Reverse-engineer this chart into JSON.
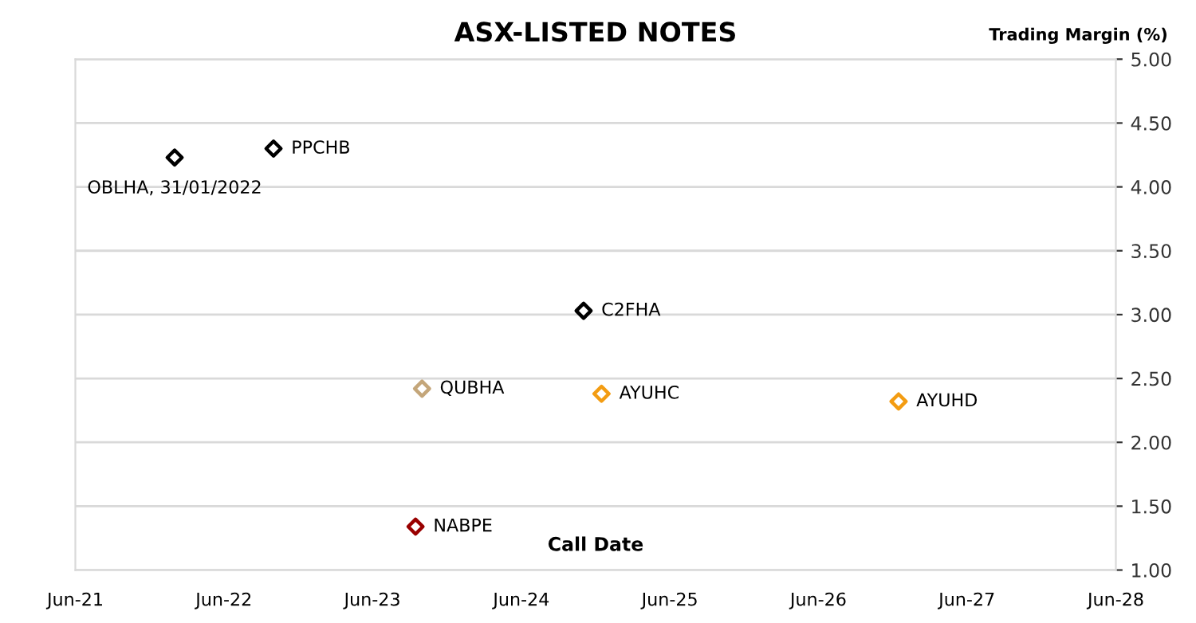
{
  "chart_data": {
    "type": "scatter",
    "title": "ASX-LISTED NOTES",
    "xlabel": "Call Date",
    "ylabel": "Trading Margin (%)",
    "x": [
      "2022-01-31",
      "2022-10-01",
      "2024-11-01",
      "2023-10-01",
      "2024-12-15",
      "2026-12-15",
      "2023-09-15"
    ],
    "values": [
      4.23,
      4.3,
      3.03,
      2.42,
      2.38,
      2.32,
      1.34
    ],
    "colors": [
      "#000000",
      "#000000",
      "#000000",
      "#c4a67a",
      "#f39c12",
      "#f39c12",
      "#990000"
    ],
    "marker": "diamond",
    "annotations": [
      {
        "text": "OBLHA, 31/01/2022",
        "x": "2022-01-31",
        "y": 4.23
      },
      {
        "text": "PPCHB",
        "x": "2022-10-01",
        "y": 4.3
      },
      {
        "text": "C2FHA",
        "x": "2024-11-01",
        "y": 3.03
      },
      {
        "text": "QUBHA",
        "x": "2023-10-01",
        "y": 2.42
      },
      {
        "text": "AYUHC",
        "x": "2024-12-15",
        "y": 2.38
      },
      {
        "text": "AYUHD",
        "x": "2026-12-15",
        "y": 2.32
      },
      {
        "text": "NABPE",
        "x": "2023-09-15",
        "y": 1.34
      }
    ],
    "xlim": [
      "2021-06-01",
      "2028-06-01"
    ],
    "xticks": [
      {
        "value": "2021-06-01",
        "label": "Jun-21"
      },
      {
        "value": "2022-06-01",
        "label": "Jun-22"
      },
      {
        "value": "2023-06-01",
        "label": "Jun-23"
      },
      {
        "value": "2024-06-01",
        "label": "Jun-24"
      },
      {
        "value": "2025-06-01",
        "label": "Jun-25"
      },
      {
        "value": "2026-06-01",
        "label": "Jun-26"
      },
      {
        "value": "2027-06-01",
        "label": "Jun-27"
      },
      {
        "value": "2028-06-01",
        "label": "Jun-28"
      }
    ],
    "ylim": [
      1,
      5
    ],
    "yticks": [
      {
        "value": 1,
        "label": "1.00"
      },
      {
        "value": 1.5,
        "label": "1.50"
      },
      {
        "value": 2,
        "label": "2.00"
      },
      {
        "value": 2.5,
        "label": "2.50"
      },
      {
        "value": 3,
        "label": "3.00"
      },
      {
        "value": 3.5,
        "label": "3.50"
      },
      {
        "value": 4,
        "label": "4.00"
      },
      {
        "value": 4.5,
        "label": "4.50"
      },
      {
        "value": 5,
        "label": "5.00"
      }
    ],
    "grid": "y",
    "legend": false
  }
}
